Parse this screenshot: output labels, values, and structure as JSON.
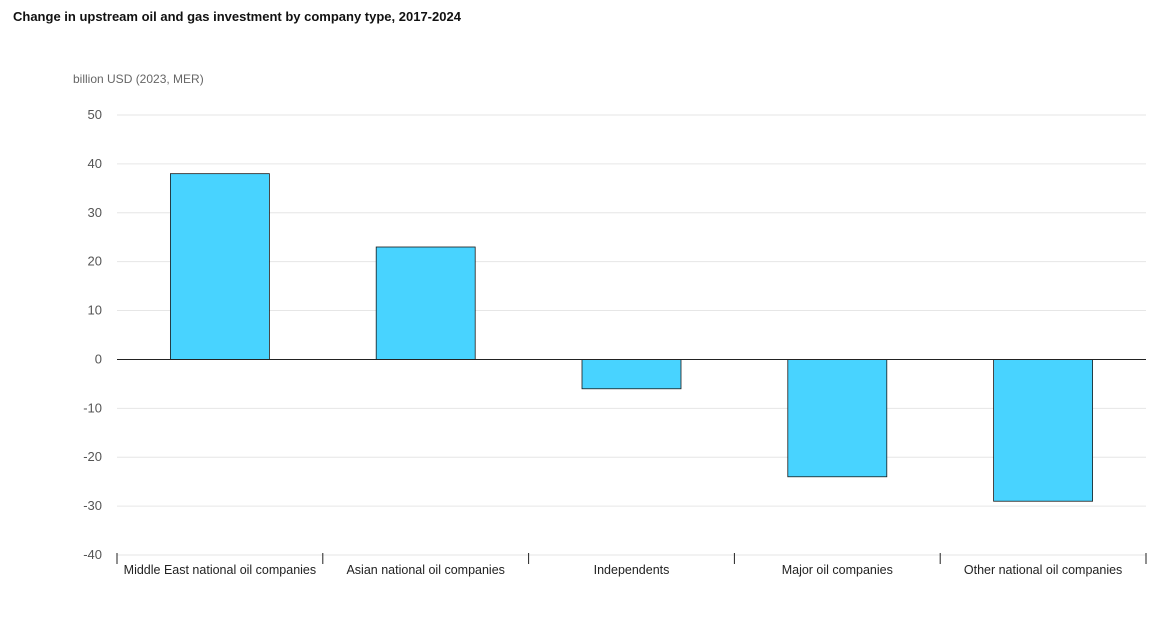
{
  "chart_data": {
    "type": "bar",
    "title": "Change in upstream oil and gas investment by company type, 2017-2024",
    "ylabel": "billion USD (2023, MER)",
    "xlabel": "",
    "categories": [
      "Middle East national oil companies",
      "Asian national oil companies",
      "Independents",
      "Major oil companies",
      "Other national oil companies"
    ],
    "values": [
      38,
      23,
      -6,
      -24,
      -29
    ],
    "ylim": [
      -40,
      50
    ],
    "yticks": [
      50,
      40,
      30,
      20,
      10,
      0,
      -10,
      -20,
      -30,
      -40
    ],
    "grid": true,
    "colors": {
      "bar": "#48d3ff",
      "bar_edge": "#1a1a1a",
      "grid": "#e6e6e6",
      "zero_line": "#222222"
    }
  }
}
